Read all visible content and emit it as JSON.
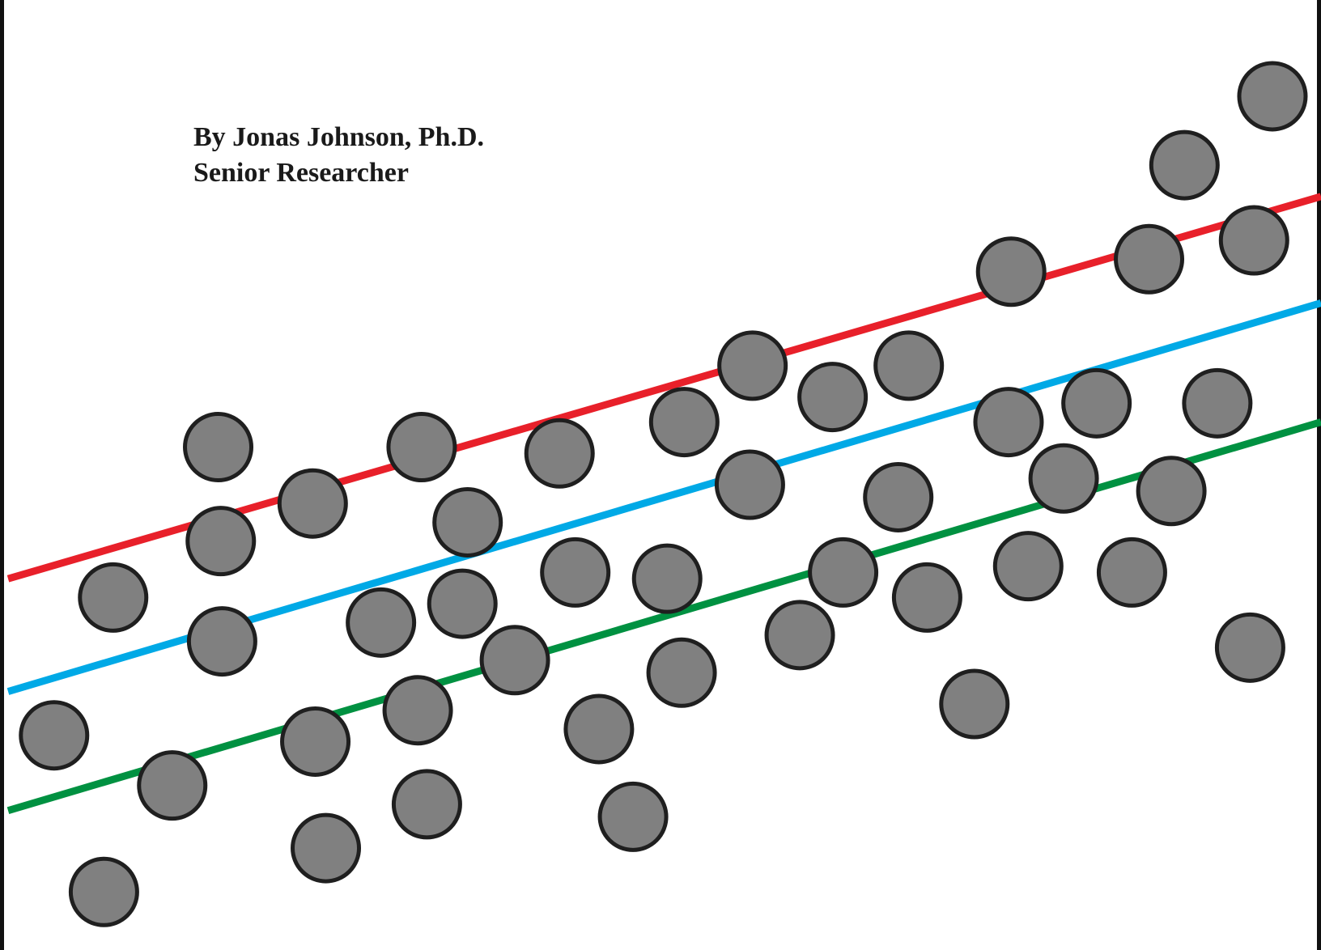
{
  "title": "",
  "author": {
    "name_line": "By Jonas Johnson, Ph.D.",
    "role_line": "Senior Researcher"
  },
  "colors": {
    "point_fill": "#808080",
    "point_stroke": "#1f1f1f",
    "background": "#ffffff"
  },
  "chart_data": {
    "type": "scatter",
    "title": "",
    "xlabel": "",
    "ylabel": "",
    "xlim": [
      0,
      100
    ],
    "ylim": [
      0,
      70
    ],
    "grid": false,
    "legend": "none",
    "points": [
      {
        "x": 3.5,
        "y": 15.0
      },
      {
        "x": 7.3,
        "y": 2.5
      },
      {
        "x": 8.0,
        "y": 26.0
      },
      {
        "x": 12.5,
        "y": 11.0
      },
      {
        "x": 16.0,
        "y": 38.0
      },
      {
        "x": 16.2,
        "y": 30.5
      },
      {
        "x": 16.3,
        "y": 22.5
      },
      {
        "x": 23.2,
        "y": 33.5
      },
      {
        "x": 23.4,
        "y": 14.5
      },
      {
        "x": 24.2,
        "y": 6.0
      },
      {
        "x": 28.4,
        "y": 24.0
      },
      {
        "x": 31.2,
        "y": 17.0
      },
      {
        "x": 31.5,
        "y": 38.0
      },
      {
        "x": 31.9,
        "y": 9.5
      },
      {
        "x": 34.6,
        "y": 25.5
      },
      {
        "x": 35.0,
        "y": 32.0
      },
      {
        "x": 38.6,
        "y": 21.0
      },
      {
        "x": 42.0,
        "y": 37.5
      },
      {
        "x": 43.2,
        "y": 28.0
      },
      {
        "x": 45.0,
        "y": 15.5
      },
      {
        "x": 47.6,
        "y": 8.5
      },
      {
        "x": 50.2,
        "y": 27.5
      },
      {
        "x": 51.3,
        "y": 20.0
      },
      {
        "x": 51.5,
        "y": 40.0
      },
      {
        "x": 56.5,
        "y": 35.0
      },
      {
        "x": 56.7,
        "y": 44.5
      },
      {
        "x": 60.3,
        "y": 23.0
      },
      {
        "x": 62.8,
        "y": 42.0
      },
      {
        "x": 63.6,
        "y": 28.0
      },
      {
        "x": 67.8,
        "y": 34.0
      },
      {
        "x": 68.6,
        "y": 44.5
      },
      {
        "x": 70.0,
        "y": 26.0
      },
      {
        "x": 73.6,
        "y": 17.5
      },
      {
        "x": 76.2,
        "y": 40.0
      },
      {
        "x": 76.4,
        "y": 52.0
      },
      {
        "x": 77.7,
        "y": 28.5
      },
      {
        "x": 80.4,
        "y": 35.5
      },
      {
        "x": 82.9,
        "y": 41.5
      },
      {
        "x": 85.6,
        "y": 28.0
      },
      {
        "x": 86.9,
        "y": 53.0
      },
      {
        "x": 88.6,
        "y": 34.5
      },
      {
        "x": 89.6,
        "y": 60.5
      },
      {
        "x": 92.1,
        "y": 41.5
      },
      {
        "x": 94.6,
        "y": 22.0
      },
      {
        "x": 94.9,
        "y": 54.5
      },
      {
        "x": 96.3,
        "y": 66.0
      }
    ],
    "series": [
      {
        "type": "line",
        "color": "#e8202a",
        "x": [
          0,
          100
        ],
        "y": [
          27.5,
          58.0
        ]
      },
      {
        "type": "line",
        "color": "#00a9e6",
        "x": [
          0,
          100
        ],
        "y": [
          18.5,
          49.5
        ]
      },
      {
        "type": "line",
        "color": "#009141",
        "x": [
          0,
          100
        ],
        "y": [
          9.0,
          40.0
        ]
      }
    ]
  }
}
